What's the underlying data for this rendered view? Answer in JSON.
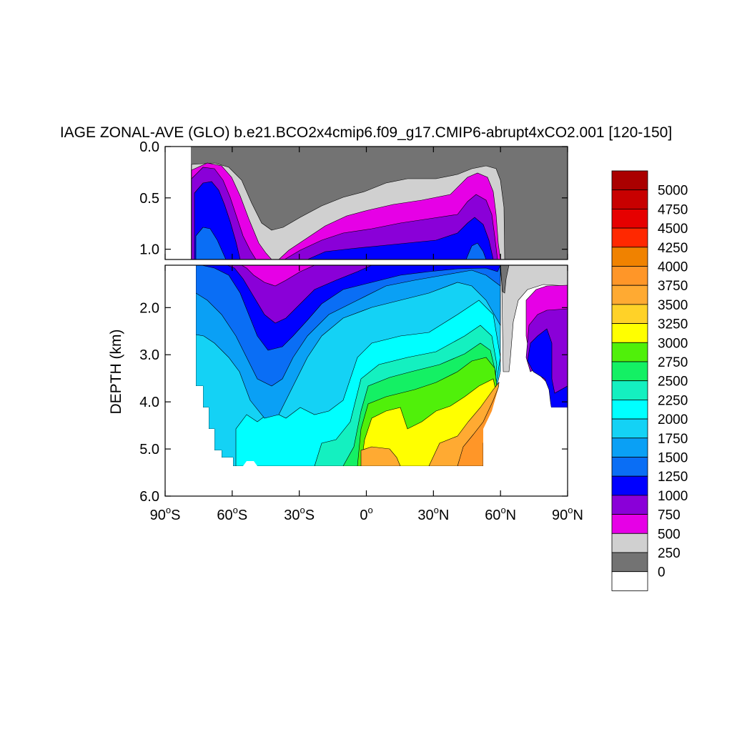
{
  "chart_data": {
    "type": "heatmap",
    "title": "IAGE ZONAL-AVE (GLO) b.e21.BCO2x4cmip6.f09_g17.CMIP6-abrupt4xCO2.001 [120-150]",
    "xlabel": "",
    "ylabel": "DEPTH (km)",
    "x_ticks": [
      {
        "value": -90,
        "num": "90",
        "sfx": "S"
      },
      {
        "value": -60,
        "num": "60",
        "sfx": "S"
      },
      {
        "value": -30,
        "num": "30",
        "sfx": "S"
      },
      {
        "value": 0,
        "num": "0",
        "sfx": ""
      },
      {
        "value": 30,
        "num": "30",
        "sfx": "N"
      },
      {
        "value": 60,
        "num": "60",
        "sfx": "N"
      },
      {
        "value": 90,
        "num": "90",
        "sfx": "N"
      }
    ],
    "xlim": [
      -90,
      90
    ],
    "upper_panel": {
      "ylim": [
        0.0,
        1.1
      ],
      "y_ticks": [
        "0.0",
        "0.5",
        "1.0"
      ],
      "y_values": [
        0.0,
        0.5,
        1.0
      ]
    },
    "lower_panel": {
      "ylim": [
        1.1,
        6.0
      ],
      "y_ticks": [
        "2.0",
        "3.0",
        "4.0",
        "5.0",
        "6.0"
      ],
      "y_values": [
        2.0,
        3.0,
        4.0,
        5.0,
        6.0
      ]
    },
    "colorbar": {
      "levels": [
        "0",
        "250",
        "500",
        "750",
        "1000",
        "1250",
        "1500",
        "1750",
        "2000",
        "2250",
        "2500",
        "2750",
        "3000",
        "3250",
        "3500",
        "3750",
        "4000",
        "4250",
        "4500",
        "4750",
        "5000"
      ],
      "colors": [
        "#ffffff",
        "#737373",
        "#d0d0d0",
        "#e600e6",
        "#8a00d8",
        "#0000ff",
        "#0a6ef5",
        "#0aa0f5",
        "#14d2f5",
        "#00ffff",
        "#14f0c0",
        "#14f064",
        "#50f00a",
        "#ffff00",
        "#ffd228",
        "#ffaa32",
        "#ff9628",
        "#f08200",
        "#ff2800",
        "#e60000",
        "#c80000",
        "#aa0000"
      ]
    }
  }
}
